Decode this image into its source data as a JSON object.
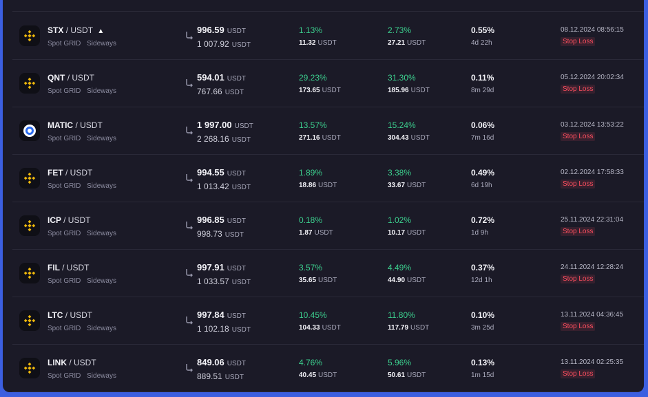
{
  "colors": {
    "positive": "#3ccf8e",
    "stop_loss": "#ff4f5f",
    "panel_bg": "#1b1a27",
    "frame": "#3c5fe0"
  },
  "bots": [
    {
      "base": "STX",
      "quote": "/ USDT",
      "warning": "▲",
      "icon": "binance-icon",
      "type": "Spot GRID",
      "mode": "Sideways",
      "investment": "996.59",
      "investment_cur": "USDT",
      "current": "1 007.92",
      "current_cur": "USDT",
      "pnl_pct": "1.13%",
      "pnl_val": "11.32",
      "pnl_cur": "USDT",
      "total_pct": "2.73%",
      "total_val": "27.21",
      "total_cur": "USDT",
      "apr": "0.55%",
      "duration": "4d 22h",
      "date": "08.12.2024 08:56:15",
      "status": "Stop Loss"
    },
    {
      "base": "QNT",
      "quote": "/ USDT",
      "warning": "",
      "icon": "binance-icon",
      "type": "Spot GRID",
      "mode": "Sideways",
      "investment": "594.01",
      "investment_cur": "USDT",
      "current": "767.66",
      "current_cur": "USDT",
      "pnl_pct": "29.23%",
      "pnl_val": "173.65",
      "pnl_cur": "USDT",
      "total_pct": "31.30%",
      "total_val": "185.96",
      "total_cur": "USDT",
      "apr": "0.11%",
      "duration": "8m 29d",
      "date": "05.12.2024 20:02:34",
      "status": "Stop Loss"
    },
    {
      "base": "MATIC",
      "quote": "/ USDT",
      "warning": "",
      "icon": "matic-icon",
      "type": "Spot GRID",
      "mode": "Sideways",
      "investment": "1 997.00",
      "investment_cur": "USDT",
      "current": "2 268.16",
      "current_cur": "USDT",
      "pnl_pct": "13.57%",
      "pnl_val": "271.16",
      "pnl_cur": "USDT",
      "total_pct": "15.24%",
      "total_val": "304.43",
      "total_cur": "USDT",
      "apr": "0.06%",
      "duration": "7m 16d",
      "date": "03.12.2024 13:53:22",
      "status": "Stop Loss"
    },
    {
      "base": "FET",
      "quote": "/ USDT",
      "warning": "",
      "icon": "binance-icon",
      "type": "Spot GRID",
      "mode": "Sideways",
      "investment": "994.55",
      "investment_cur": "USDT",
      "current": "1 013.42",
      "current_cur": "USDT",
      "pnl_pct": "1.89%",
      "pnl_val": "18.86",
      "pnl_cur": "USDT",
      "total_pct": "3.38%",
      "total_val": "33.67",
      "total_cur": "USDT",
      "apr": "0.49%",
      "duration": "6d 19h",
      "date": "02.12.2024 17:58:33",
      "status": "Stop Loss"
    },
    {
      "base": "ICP",
      "quote": "/ USDT",
      "warning": "",
      "icon": "binance-icon",
      "type": "Spot GRID",
      "mode": "Sideways",
      "investment": "996.85",
      "investment_cur": "USDT",
      "current": "998.73",
      "current_cur": "USDT",
      "pnl_pct": "0.18%",
      "pnl_val": "1.87",
      "pnl_cur": "USDT",
      "total_pct": "1.02%",
      "total_val": "10.17",
      "total_cur": "USDT",
      "apr": "0.72%",
      "duration": "1d 9h",
      "date": "25.11.2024 22:31:04",
      "status": "Stop Loss"
    },
    {
      "base": "FIL",
      "quote": "/ USDT",
      "warning": "",
      "icon": "binance-icon",
      "type": "Spot GRID",
      "mode": "Sideways",
      "investment": "997.91",
      "investment_cur": "USDT",
      "current": "1 033.57",
      "current_cur": "USDT",
      "pnl_pct": "3.57%",
      "pnl_val": "35.65",
      "pnl_cur": "USDT",
      "total_pct": "4.49%",
      "total_val": "44.90",
      "total_cur": "USDT",
      "apr": "0.37%",
      "duration": "12d 1h",
      "date": "24.11.2024 12:28:24",
      "status": "Stop Loss"
    },
    {
      "base": "LTC",
      "quote": "/ USDT",
      "warning": "",
      "icon": "binance-icon",
      "type": "Spot GRID",
      "mode": "Sideways",
      "investment": "997.84",
      "investment_cur": "USDT",
      "current": "1 102.18",
      "current_cur": "USDT",
      "pnl_pct": "10.45%",
      "pnl_val": "104.33",
      "pnl_cur": "USDT",
      "total_pct": "11.80%",
      "total_val": "117.79",
      "total_cur": "USDT",
      "apr": "0.10%",
      "duration": "3m 25d",
      "date": "13.11.2024 04:36:45",
      "status": "Stop Loss"
    },
    {
      "base": "LINK",
      "quote": "/ USDT",
      "warning": "",
      "icon": "binance-icon",
      "type": "Spot GRID",
      "mode": "Sideways",
      "investment": "849.06",
      "investment_cur": "USDT",
      "current": "889.51",
      "current_cur": "USDT",
      "pnl_pct": "4.76%",
      "pnl_val": "40.45",
      "pnl_cur": "USDT",
      "total_pct": "5.96%",
      "total_val": "50.61",
      "total_cur": "USDT",
      "apr": "0.13%",
      "duration": "1m 15d",
      "date": "13.11.2024 02:25:35",
      "status": "Stop Loss"
    }
  ]
}
